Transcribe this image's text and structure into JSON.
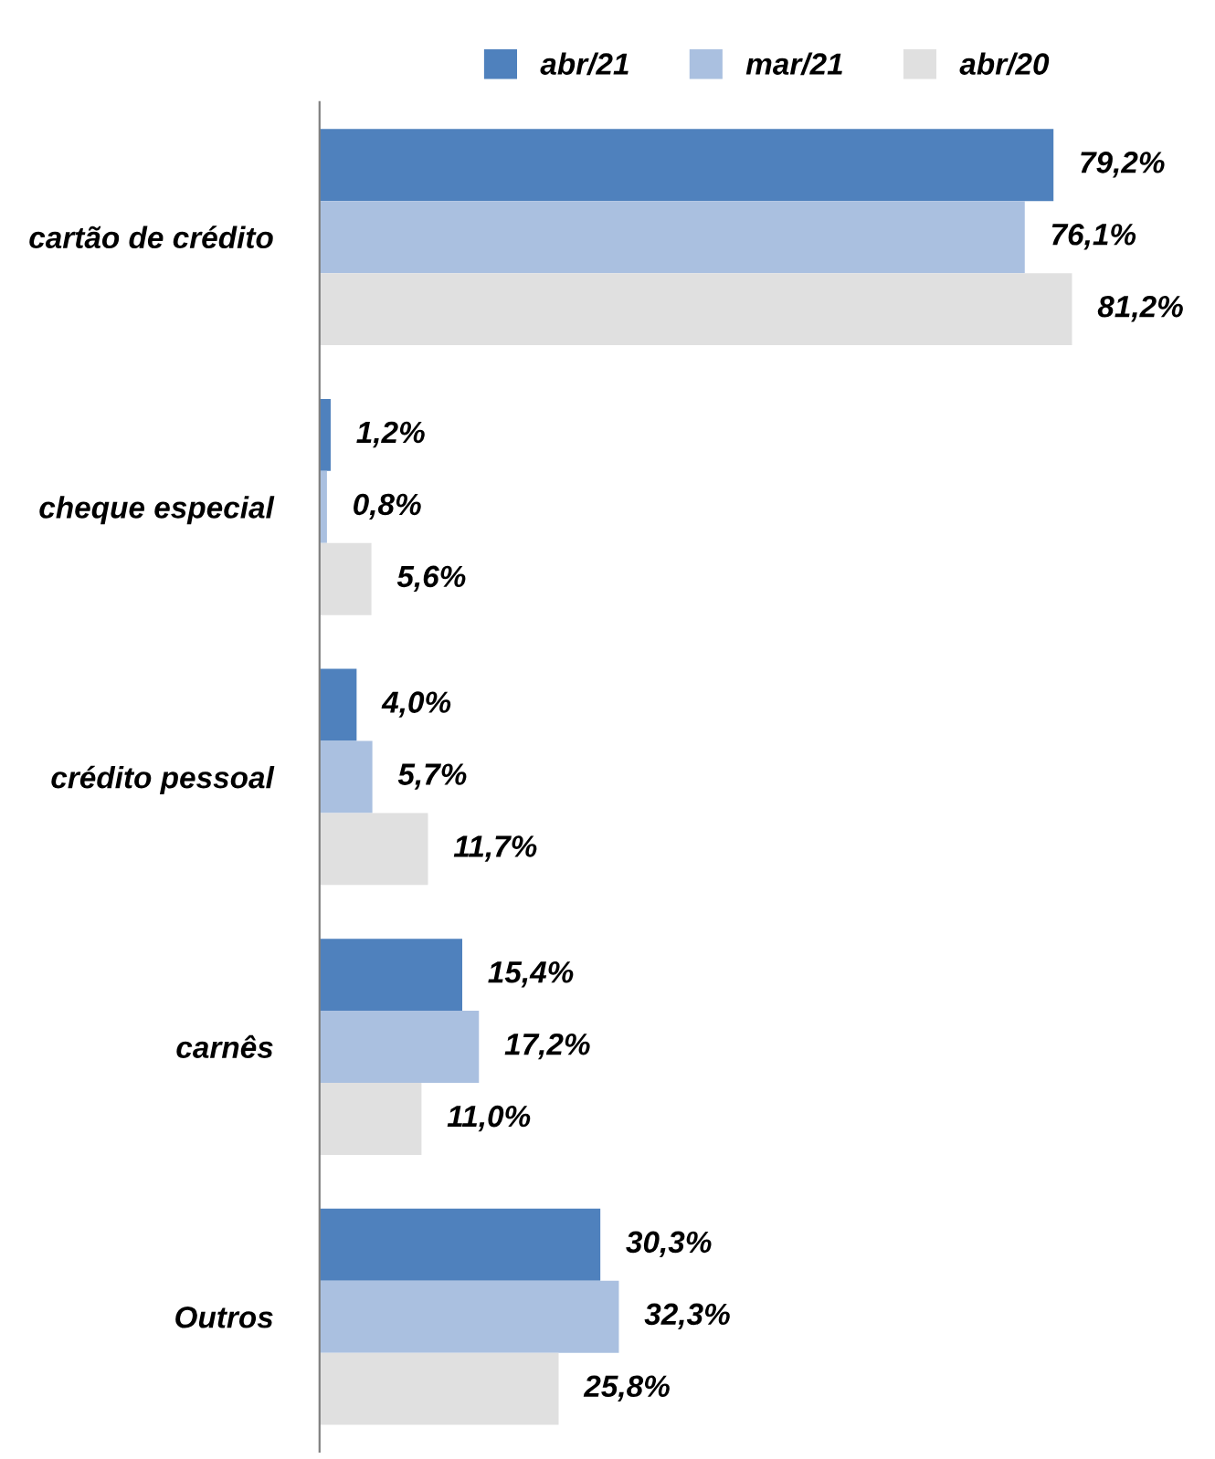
{
  "chart_data": {
    "type": "bar",
    "orientation": "horizontal",
    "categories": [
      "cartão de crédito",
      "cheque especial",
      "crédito pessoal",
      "carnês",
      "Outros"
    ],
    "series": [
      {
        "name": "abr/21",
        "color": "#4f81bd",
        "values": [
          79.2,
          1.2,
          4.0,
          15.4,
          30.3
        ],
        "value_labels": [
          "79,2%",
          "1,2%",
          "4,0%",
          "15,4%",
          "30,3%"
        ]
      },
      {
        "name": "mar/21",
        "color": "#aac0e0",
        "values": [
          76.1,
          0.8,
          5.7,
          17.2,
          32.3
        ],
        "value_labels": [
          "76,1%",
          "0,8%",
          "5,7%",
          "17,2%",
          "32,3%"
        ]
      },
      {
        "name": "abr/20",
        "color": "#e0e0e0",
        "values": [
          81.2,
          5.6,
          11.7,
          11.0,
          25.8
        ],
        "value_labels": [
          "81,2%",
          "5,6%",
          "11,7%",
          "11,0%",
          "25,8%"
        ]
      }
    ],
    "legend": "top",
    "grid": false,
    "tick_labels": "y"
  }
}
